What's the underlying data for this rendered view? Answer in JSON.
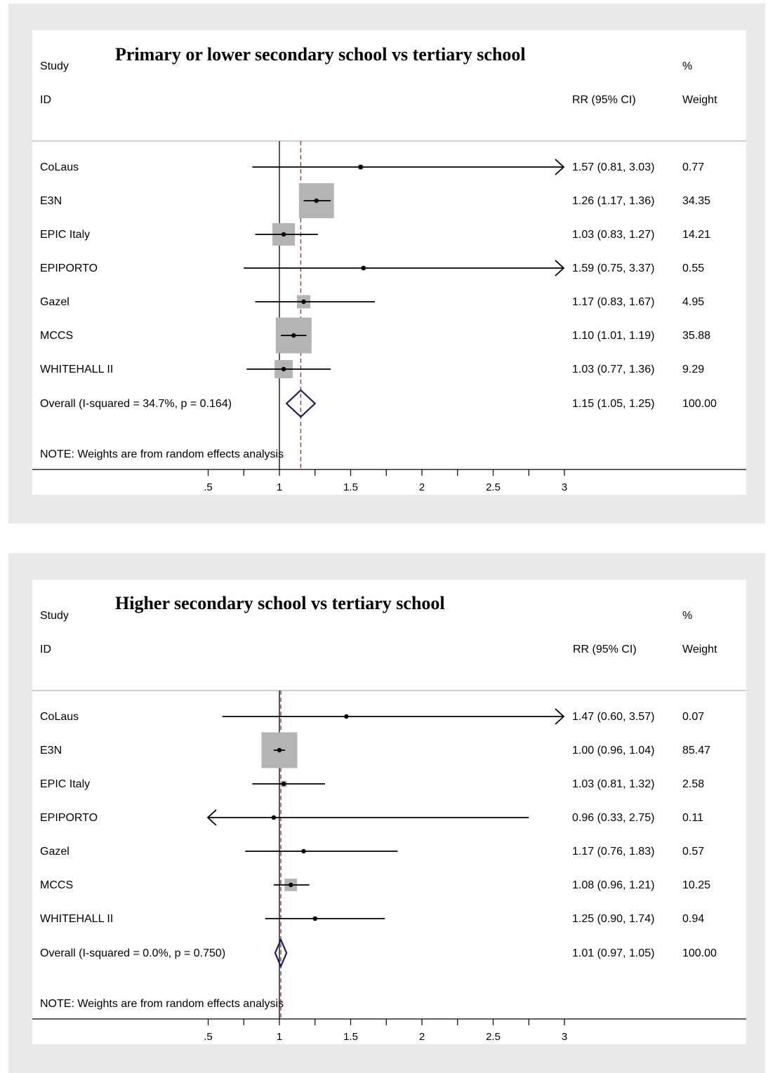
{
  "chart_data": [
    {
      "type": "forest",
      "title": "Primary or lower secondary school vs tertiary school",
      "headers": {
        "study": "Study",
        "id": "ID",
        "rr": "RR (95% CI)",
        "pct": "%",
        "weight": "Weight"
      },
      "studies": [
        {
          "name": "CoLaus",
          "rr": 1.57,
          "lo": 0.81,
          "hi": 3.03,
          "rr_text": "1.57 (0.81, 3.03)",
          "weight": "0.77",
          "w": 0.77,
          "arrow": "right"
        },
        {
          "name": "E3N",
          "rr": 1.26,
          "lo": 1.17,
          "hi": 1.36,
          "rr_text": "1.26 (1.17, 1.36)",
          "weight": "34.35",
          "w": 34.35
        },
        {
          "name": "EPIC Italy",
          "rr": 1.03,
          "lo": 0.83,
          "hi": 1.27,
          "rr_text": "1.03 (0.83, 1.27)",
          "weight": "14.21",
          "w": 14.21
        },
        {
          "name": "EPIPORTO",
          "rr": 1.59,
          "lo": 0.75,
          "hi": 3.37,
          "rr_text": "1.59 (0.75, 3.37)",
          "weight": "0.55",
          "w": 0.55,
          "arrow": "right"
        },
        {
          "name": "Gazel",
          "rr": 1.17,
          "lo": 0.83,
          "hi": 1.67,
          "rr_text": "1.17 (0.83, 1.67)",
          "weight": "4.95",
          "w": 4.95
        },
        {
          "name": "MCCS",
          "rr": 1.1,
          "lo": 1.01,
          "hi": 1.19,
          "rr_text": "1.10 (1.01, 1.19)",
          "weight": "35.88",
          "w": 35.88
        },
        {
          "name": "WHITEHALL II",
          "rr": 1.03,
          "lo": 0.77,
          "hi": 1.36,
          "rr_text": "1.03 (0.77, 1.36)",
          "weight": "9.29",
          "w": 9.29
        }
      ],
      "overall": {
        "label": "Overall  (I-squared = 34.7%, p = 0.164)",
        "rr": 1.15,
        "lo": 1.05,
        "hi": 1.25,
        "rr_text": "1.15 (1.05, 1.25)",
        "weight": "100.00"
      },
      "note": "NOTE: Weights are from random effects analysis",
      "x_ticks": [
        0.5,
        1,
        1.5,
        2,
        2.5,
        3
      ],
      "x_tick_labels": [
        ".5",
        "1",
        "1.5",
        "2",
        "2.5",
        "3"
      ],
      "x_minor_ticks": [
        0.75,
        1.25,
        1.75,
        2.25,
        2.75
      ],
      "null_line": 1,
      "colors": {
        "box": "#b4b4b4",
        "diamond": "#1a1a6e",
        "overall_line": "#9a2a2a"
      }
    },
    {
      "type": "forest",
      "title": "Higher secondary school vs tertiary school",
      "headers": {
        "study": "Study",
        "id": "ID",
        "rr": "RR (95% CI)",
        "pct": "%",
        "weight": "Weight"
      },
      "studies": [
        {
          "name": "CoLaus",
          "rr": 1.47,
          "lo": 0.6,
          "hi": 3.57,
          "rr_text": "1.47 (0.60, 3.57)",
          "weight": "0.07",
          "w": 0.07,
          "arrow": "right"
        },
        {
          "name": "E3N",
          "rr": 1.0,
          "lo": 0.96,
          "hi": 1.04,
          "rr_text": "1.00 (0.96, 1.04)",
          "weight": "85.47",
          "w": 85.47
        },
        {
          "name": "EPIC Italy",
          "rr": 1.03,
          "lo": 0.81,
          "hi": 1.32,
          "rr_text": "1.03 (0.81, 1.32)",
          "weight": "2.58",
          "w": 2.58
        },
        {
          "name": "EPIPORTO",
          "rr": 0.96,
          "lo": 0.33,
          "hi": 2.75,
          "rr_text": "0.96 (0.33, 2.75)",
          "weight": "0.11",
          "w": 0.11,
          "arrow": "left"
        },
        {
          "name": "Gazel",
          "rr": 1.17,
          "lo": 0.76,
          "hi": 1.83,
          "rr_text": "1.17 (0.76, 1.83)",
          "weight": "0.57",
          "w": 0.57
        },
        {
          "name": "MCCS",
          "rr": 1.08,
          "lo": 0.96,
          "hi": 1.21,
          "rr_text": "1.08 (0.96, 1.21)",
          "weight": "10.25",
          "w": 10.25
        },
        {
          "name": "WHITEHALL II",
          "rr": 1.25,
          "lo": 0.9,
          "hi": 1.74,
          "rr_text": "1.25 (0.90, 1.74)",
          "weight": "0.94",
          "w": 0.94
        }
      ],
      "overall": {
        "label": "Overall  (I-squared = 0.0%, p = 0.750)",
        "rr": 1.01,
        "lo": 0.97,
        "hi": 1.05,
        "rr_text": "1.01 (0.97, 1.05)",
        "weight": "100.00"
      },
      "note": "NOTE: Weights are from random effects analysis",
      "x_ticks": [
        0.5,
        1,
        1.5,
        2,
        2.5,
        3
      ],
      "x_tick_labels": [
        ".5",
        "1",
        "1.5",
        "2",
        "2.5",
        "3"
      ],
      "x_minor_ticks": [
        0.75,
        1.25,
        1.75,
        2.25,
        2.75
      ],
      "null_line": 1,
      "colors": {
        "box": "#b4b4b4",
        "diamond": "#1a1a6e",
        "overall_line": "#9a2a2a"
      }
    }
  ]
}
